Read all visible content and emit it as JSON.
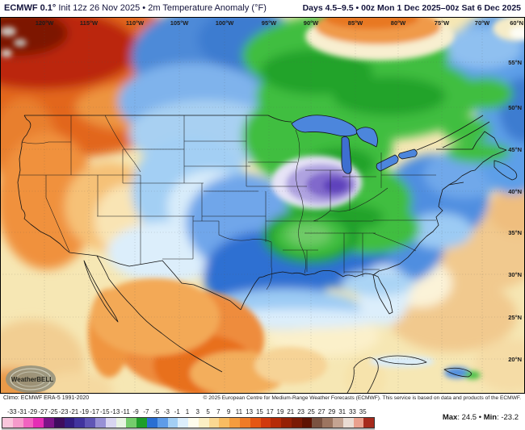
{
  "header": {
    "title_bold": "ECMWF 0.1°",
    "title_rest": " Init 12z 26 Nov 2025 • 2m Temperature Anomaly (°F)",
    "range": "Days 4.5–9.5 • 00z Mon 1 Dec 2025–00z Sat 6 Dec 2025"
  },
  "map": {
    "lon_labels": [
      "120°W",
      "115°W",
      "110°W",
      "105°W",
      "100°W",
      "95°W",
      "90°W",
      "85°W",
      "80°W",
      "75°W",
      "70°W"
    ],
    "corner_label": "60°N",
    "lat_labels": [
      "55°N",
      "50°N",
      "45°N",
      "40°N",
      "35°N",
      "30°N",
      "25°N",
      "20°N"
    ],
    "logo": "WeatherBELL"
  },
  "colorbar": {
    "ticks": [
      "-33",
      "-31",
      "-29",
      "-27",
      "-25",
      "-23",
      "-21",
      "-19",
      "-17",
      "-15",
      "-13",
      "-11",
      "-9",
      "-7",
      "-5",
      "-3",
      "-1",
      "1",
      "3",
      "5",
      "7",
      "9",
      "11",
      "13",
      "15",
      "17",
      "19",
      "21",
      "23",
      "25",
      "27",
      "29",
      "31",
      "33",
      "35"
    ],
    "colors": [
      "#F9C6DC",
      "#F59BCB",
      "#F163C0",
      "#E52DB5",
      "#7C1488",
      "#3E0C5E",
      "#321C80",
      "#41349E",
      "#5F55B5",
      "#9790D5",
      "#D8D5F0",
      "#E7F3E2",
      "#74CC6C",
      "#1D9E2A",
      "#2A6FD2",
      "#5E9CE8",
      "#A3CFF4",
      "#DCEEFB",
      "#FDFCEC",
      "#FBEFC4",
      "#FAD892",
      "#F8BC62",
      "#F49C3E",
      "#EF7B27",
      "#E45613",
      "#D0390C",
      "#B52B07",
      "#952105",
      "#7A1A04",
      "#5E1302",
      "#7A5240",
      "#9C7560",
      "#C4A492",
      "#EADCD3",
      "#E9A08D",
      "#A62A1C"
    ],
    "units": "°F anomaly"
  },
  "footer": {
    "climo": "Climo: ECMWF ERA-5 1991-2020",
    "copyright": "© 2025 European Centre for Medium-Range Weather Forecasts (ECMWF). This service is based on data and products of the ECMWF.",
    "max_label": "Max",
    "max_value": ": 24.5 ",
    "sep": "• ",
    "min_label": "Min",
    "min_value": ": -23.2"
  }
}
